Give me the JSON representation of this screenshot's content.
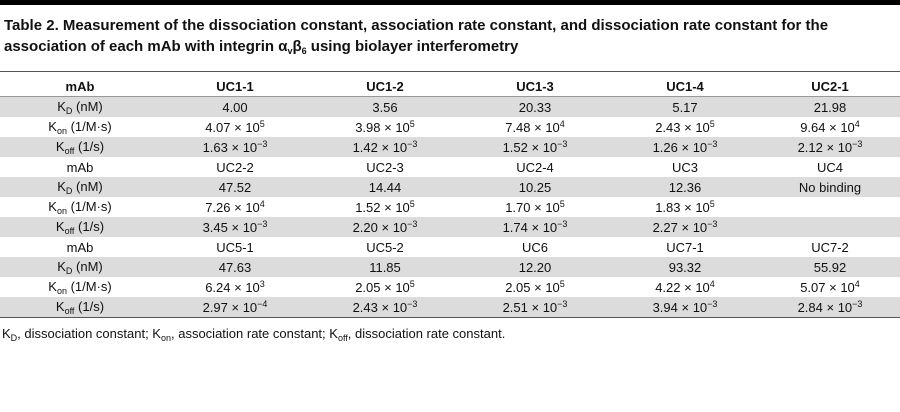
{
  "title": [
    {
      "text": "Table 2. Measurement of the dissociation constant, association rate constant, and dissociation rate constant for the association of each mAb with integrin α"
    },
    {
      "sub": "v"
    },
    {
      "text": "β"
    },
    {
      "sub": "6"
    },
    {
      "text": " using biolayer interferometry"
    }
  ],
  "table": {
    "rows": [
      [
        "mAb",
        "UC1-1",
        "UC1-2",
        "UC1-3",
        "UC1-4",
        "UC2-1"
      ],
      [
        [
          {
            "text": "K"
          },
          {
            "sub": "D"
          },
          {
            "text": " (nM)"
          }
        ],
        "4.00",
        "3.56",
        "20.33",
        "5.17",
        "21.98"
      ],
      [
        [
          {
            "text": "K"
          },
          {
            "sub": "on"
          },
          {
            "text": " (1/M·s)"
          }
        ],
        [
          {
            "text": "4.07 × 10"
          },
          {
            "sup": "5"
          }
        ],
        [
          {
            "text": "3.98 × 10"
          },
          {
            "sup": "5"
          }
        ],
        [
          {
            "text": "7.48 × 10"
          },
          {
            "sup": "4"
          }
        ],
        [
          {
            "text": "2.43 × 10"
          },
          {
            "sup": "5"
          }
        ],
        [
          {
            "text": "9.64 × 10"
          },
          {
            "sup": "4"
          }
        ]
      ],
      [
        [
          {
            "text": "K"
          },
          {
            "sub": "off"
          },
          {
            "text": " (1/s)"
          }
        ],
        [
          {
            "text": "1.63 × 10"
          },
          {
            "sup": "−3"
          }
        ],
        [
          {
            "text": "1.42 × 10"
          },
          {
            "sup": "−3"
          }
        ],
        [
          {
            "text": "1.52 × 10"
          },
          {
            "sup": "−3"
          }
        ],
        [
          {
            "text": "1.26 × 10"
          },
          {
            "sup": "−3"
          }
        ],
        [
          {
            "text": "2.12 × 10"
          },
          {
            "sup": "−3"
          }
        ]
      ],
      [
        "mAb",
        "UC2-2",
        "UC2-3",
        "UC2-4",
        "UC3",
        "UC4"
      ],
      [
        [
          {
            "text": "K"
          },
          {
            "sub": "D"
          },
          {
            "text": " (nM)"
          }
        ],
        "47.52",
        "14.44",
        "10.25",
        "12.36",
        "No binding"
      ],
      [
        [
          {
            "text": "K"
          },
          {
            "sub": "on"
          },
          {
            "text": " (1/M·s)"
          }
        ],
        [
          {
            "text": "7.26 × 10"
          },
          {
            "sup": "4"
          }
        ],
        [
          {
            "text": "1.52 × 10"
          },
          {
            "sup": "5"
          }
        ],
        [
          {
            "text": "1.70 × 10"
          },
          {
            "sup": "5"
          }
        ],
        [
          {
            "text": "1.83 × 10"
          },
          {
            "sup": "5"
          }
        ],
        null
      ],
      [
        [
          {
            "text": "K"
          },
          {
            "sub": "off"
          },
          {
            "text": " (1/s)"
          }
        ],
        [
          {
            "text": "3.45 × 10"
          },
          {
            "sup": "−3"
          }
        ],
        [
          {
            "text": "2.20 × 10"
          },
          {
            "sup": "−3"
          }
        ],
        [
          {
            "text": "1.74 × 10"
          },
          {
            "sup": "−3"
          }
        ],
        [
          {
            "text": "2.27 × 10"
          },
          {
            "sup": "−3"
          }
        ],
        null
      ],
      [
        "mAb",
        "UC5-1",
        "UC5-2",
        "UC6",
        "UC7-1",
        "UC7-2"
      ],
      [
        [
          {
            "text": "K"
          },
          {
            "sub": "D"
          },
          {
            "text": " (nM)"
          }
        ],
        "47.63",
        "11.85",
        "12.20",
        "93.32",
        "55.92"
      ],
      [
        [
          {
            "text": "K"
          },
          {
            "sub": "on"
          },
          {
            "text": " (1/M·s)"
          }
        ],
        [
          {
            "text": "6.24 × 10"
          },
          {
            "sup": "3"
          }
        ],
        [
          {
            "text": "2.05 × 10"
          },
          {
            "sup": "5"
          }
        ],
        [
          {
            "text": "2.05 × 10"
          },
          {
            "sup": "5"
          }
        ],
        [
          {
            "text": "4.22 × 10"
          },
          {
            "sup": "4"
          }
        ],
        [
          {
            "text": "5.07 × 10"
          },
          {
            "sup": "4"
          }
        ]
      ],
      [
        [
          {
            "text": "K"
          },
          {
            "sub": "off"
          },
          {
            "text": " (1/s)"
          }
        ],
        [
          {
            "text": "2.97 × 10"
          },
          {
            "sup": "−4"
          }
        ],
        [
          {
            "text": "2.43 × 10"
          },
          {
            "sup": "−3"
          }
        ],
        [
          {
            "text": "2.51 × 10"
          },
          {
            "sup": "−3"
          }
        ],
        [
          {
            "text": "3.94 × 10"
          },
          {
            "sup": "−3"
          }
        ],
        [
          {
            "text": "2.84 × 10"
          },
          {
            "sup": "−3"
          }
        ]
      ]
    ]
  },
  "footnote": [
    {
      "text": "K"
    },
    {
      "sub": "D"
    },
    {
      "text": ", dissociation constant; K"
    },
    {
      "sub": "on"
    },
    {
      "text": ", association rate constant; K"
    },
    {
      "sub": "off"
    },
    {
      "text": ", dissociation rate constant."
    }
  ]
}
